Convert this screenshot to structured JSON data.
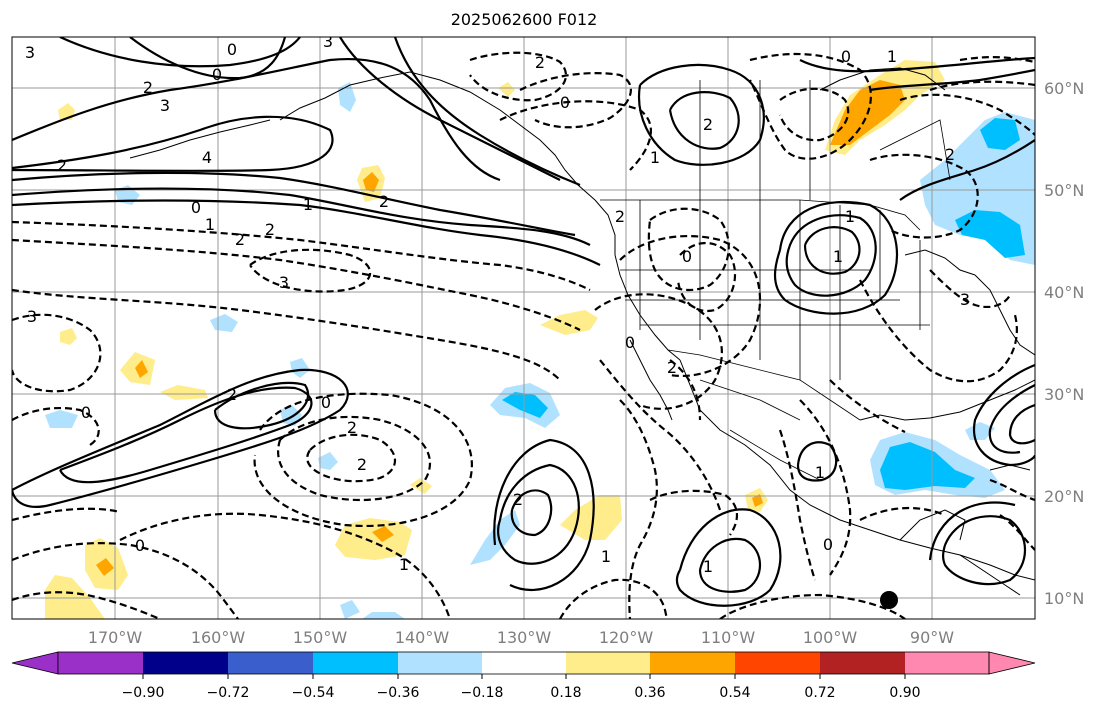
{
  "title": "2025062600 F012",
  "longitude_labels": [
    "170°W",
    "160°W",
    "150°W",
    "140°W",
    "130°W",
    "120°W",
    "110°W",
    "100°W",
    "90°W"
  ],
  "latitude_labels": [
    "60°N",
    "50°N",
    "40°N",
    "30°N",
    "20°N",
    "10°N"
  ],
  "colorbar": {
    "tick_labels": [
      "−0.90",
      "−0.72",
      "−0.54",
      "−0.36",
      "−0.18",
      "0.18",
      "0.36",
      "0.54",
      "0.72",
      "0.90"
    ],
    "colors": [
      "#9b30c8",
      "#00008b",
      "#3a5fcd",
      "#00bfff",
      "#b0e2ff",
      "#ffffff",
      "#ffec8b",
      "#ffa500",
      "#ff4500",
      "#b22222",
      "#ff88b0"
    ],
    "extend": "both"
  },
  "contour_labels": [
    "3",
    "3",
    "0",
    "0",
    "3",
    "4",
    "2",
    "0",
    "1",
    "2",
    "2",
    "3",
    "3",
    "2",
    "2",
    "0",
    "2",
    "2",
    "0",
    "1",
    "2",
    "2",
    "2",
    "1",
    "0",
    "0",
    "1",
    "2",
    "1",
    "0",
    "3",
    "1",
    "1",
    "2",
    "2",
    "1",
    "0",
    "0",
    "1",
    "0",
    "1",
    "2"
  ],
  "fields": {
    "contours": "solid lines positive, dashed lines negative",
    "shading": "anomaly shading with diverging palette"
  },
  "markers": [
    {
      "type": "dot",
      "lon": -94.0,
      "lat": 9.7
    }
  ]
}
